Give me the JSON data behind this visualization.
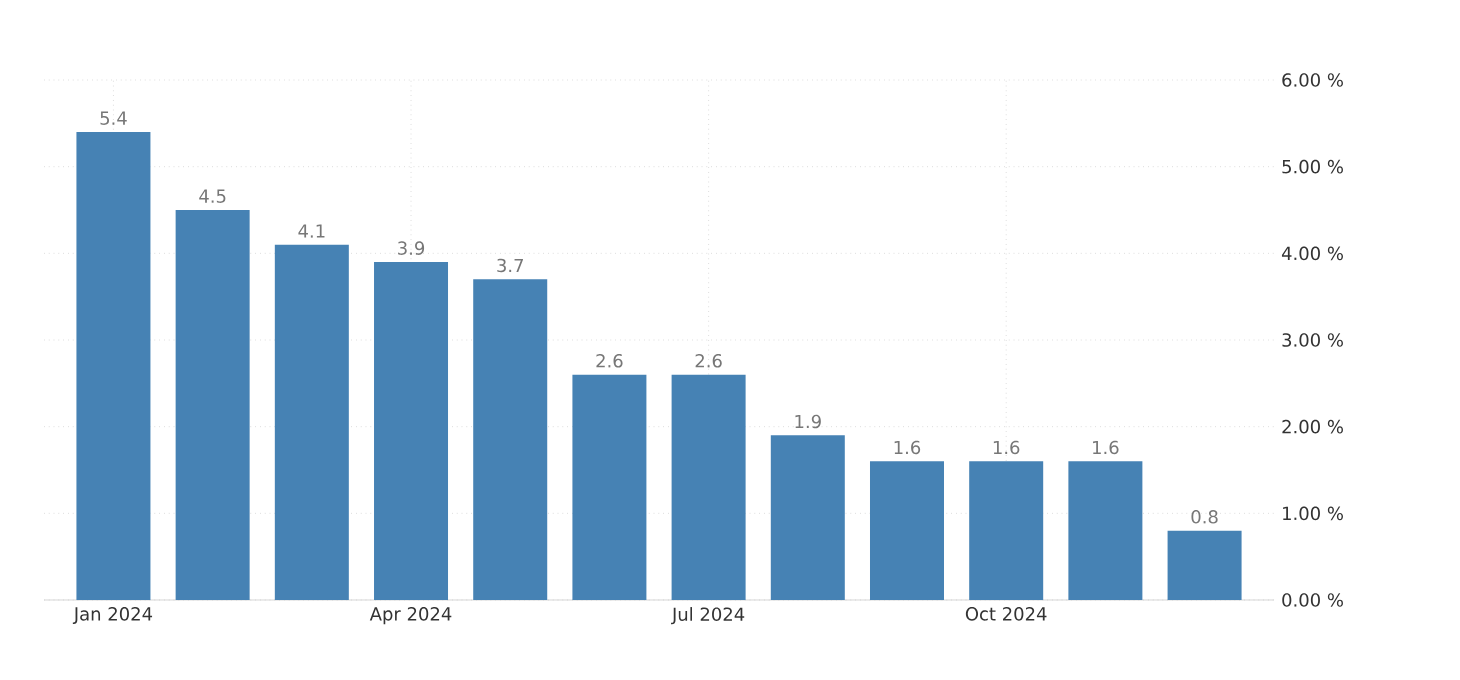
{
  "chart_data": {
    "type": "bar",
    "categories": [
      "Jan 2024",
      null,
      null,
      "Apr 2024",
      null,
      null,
      "Jul 2024",
      null,
      null,
      "Oct 2024",
      null,
      null
    ],
    "values": [
      5.4,
      4.5,
      4.1,
      3.9,
      3.7,
      2.6,
      2.6,
      1.9,
      1.6,
      1.6,
      1.6,
      0.8
    ],
    "color": "#4682b4",
    "data_labels": true,
    "grid": true,
    "ylim": [
      0,
      6
    ],
    "yticks": [
      {
        "value": 0,
        "label": "0.00 %"
      },
      {
        "value": 1,
        "label": "1.00 %"
      },
      {
        "value": 2,
        "label": "2.00 %"
      },
      {
        "value": 3,
        "label": "3.00 %"
      },
      {
        "value": 4,
        "label": "4.00 %"
      },
      {
        "value": 5,
        "label": "5.00 %"
      },
      {
        "value": 6,
        "label": "6.00 %"
      }
    ]
  }
}
